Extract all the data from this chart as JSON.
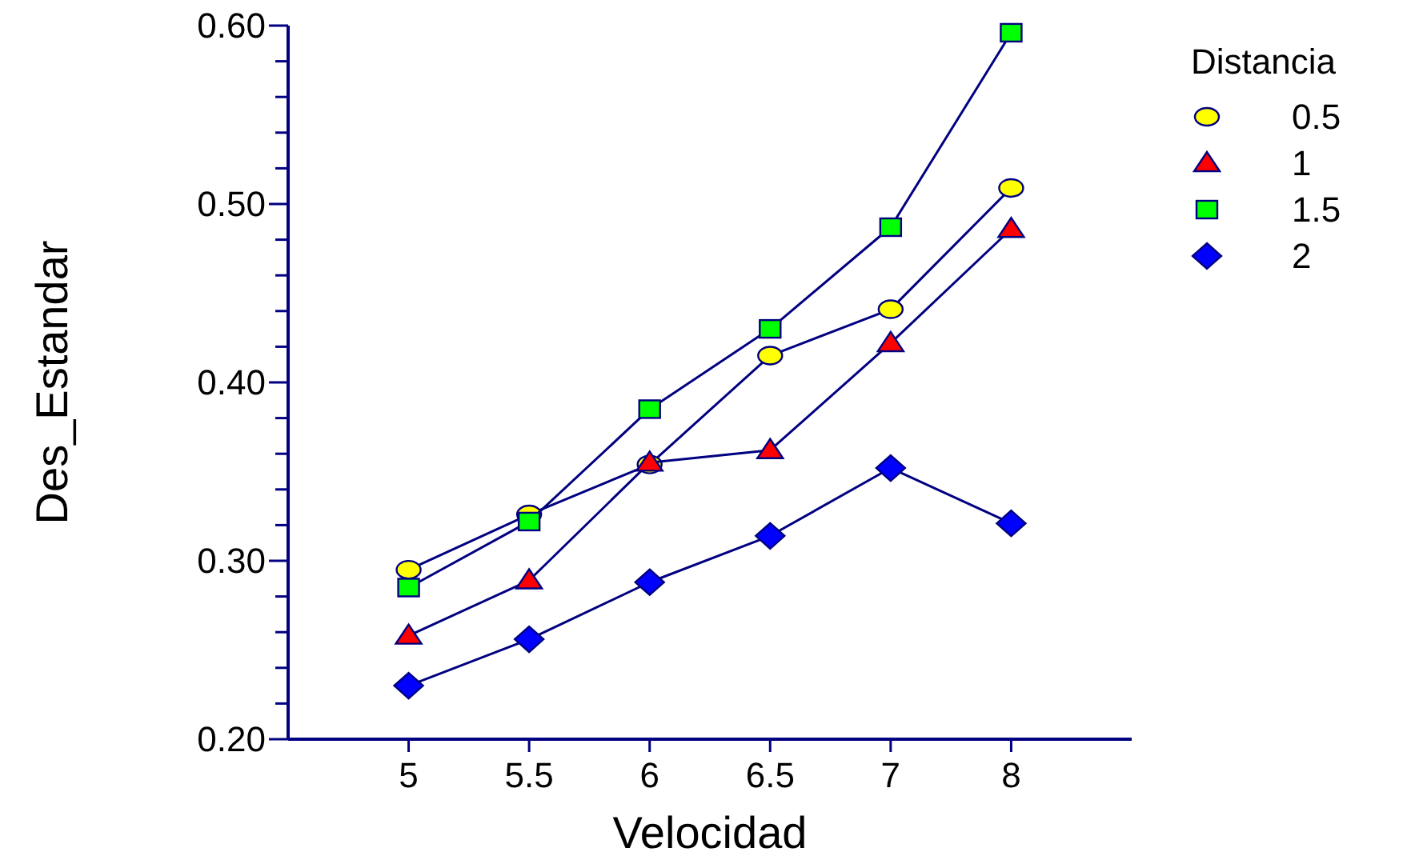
{
  "chart_data": {
    "type": "line",
    "xlabel": "Velocidad",
    "ylabel": "Des_Estandar",
    "legend_title": "Distancia",
    "legend": "right",
    "grid": false,
    "categories": [
      "5",
      "5.5",
      "6",
      "6.5",
      "7",
      "8"
    ],
    "ylim": [
      0.2,
      0.6
    ],
    "yticks": [
      {
        "value": 0.2,
        "label": "0.20"
      },
      {
        "value": 0.22,
        "label": null
      },
      {
        "value": 0.24,
        "label": null
      },
      {
        "value": 0.26,
        "label": null
      },
      {
        "value": 0.28,
        "label": null
      },
      {
        "value": 0.3,
        "label": "0.30"
      },
      {
        "value": 0.32,
        "label": null
      },
      {
        "value": 0.34,
        "label": null
      },
      {
        "value": 0.36,
        "label": null
      },
      {
        "value": 0.38,
        "label": null
      },
      {
        "value": 0.4,
        "label": "0.40"
      },
      {
        "value": 0.42,
        "label": null
      },
      {
        "value": 0.44,
        "label": null
      },
      {
        "value": 0.46,
        "label": null
      },
      {
        "value": 0.48,
        "label": null
      },
      {
        "value": 0.5,
        "label": "0.50"
      },
      {
        "value": 0.52,
        "label": null
      },
      {
        "value": 0.54,
        "label": null
      },
      {
        "value": 0.56,
        "label": null
      },
      {
        "value": 0.58,
        "label": null
      },
      {
        "value": 0.6,
        "label": "0.60"
      }
    ],
    "series": [
      {
        "name": "0.5",
        "color": "#ffff00",
        "marker": "circle",
        "values": [
          0.295,
          0.326,
          0.354,
          0.415,
          0.441,
          0.509
        ]
      },
      {
        "name": "1",
        "color": "#ff0000",
        "marker": "triangle",
        "values": [
          0.258,
          0.289,
          0.355,
          0.362,
          0.422,
          0.486
        ]
      },
      {
        "name": "1.5",
        "color": "#00ff00",
        "marker": "square",
        "values": [
          0.285,
          0.322,
          0.385,
          0.43,
          0.487,
          0.596
        ]
      },
      {
        "name": "2",
        "color": "#0000ff",
        "marker": "diamond",
        "values": [
          0.23,
          0.256,
          0.288,
          0.314,
          0.352,
          0.321
        ]
      }
    ]
  }
}
